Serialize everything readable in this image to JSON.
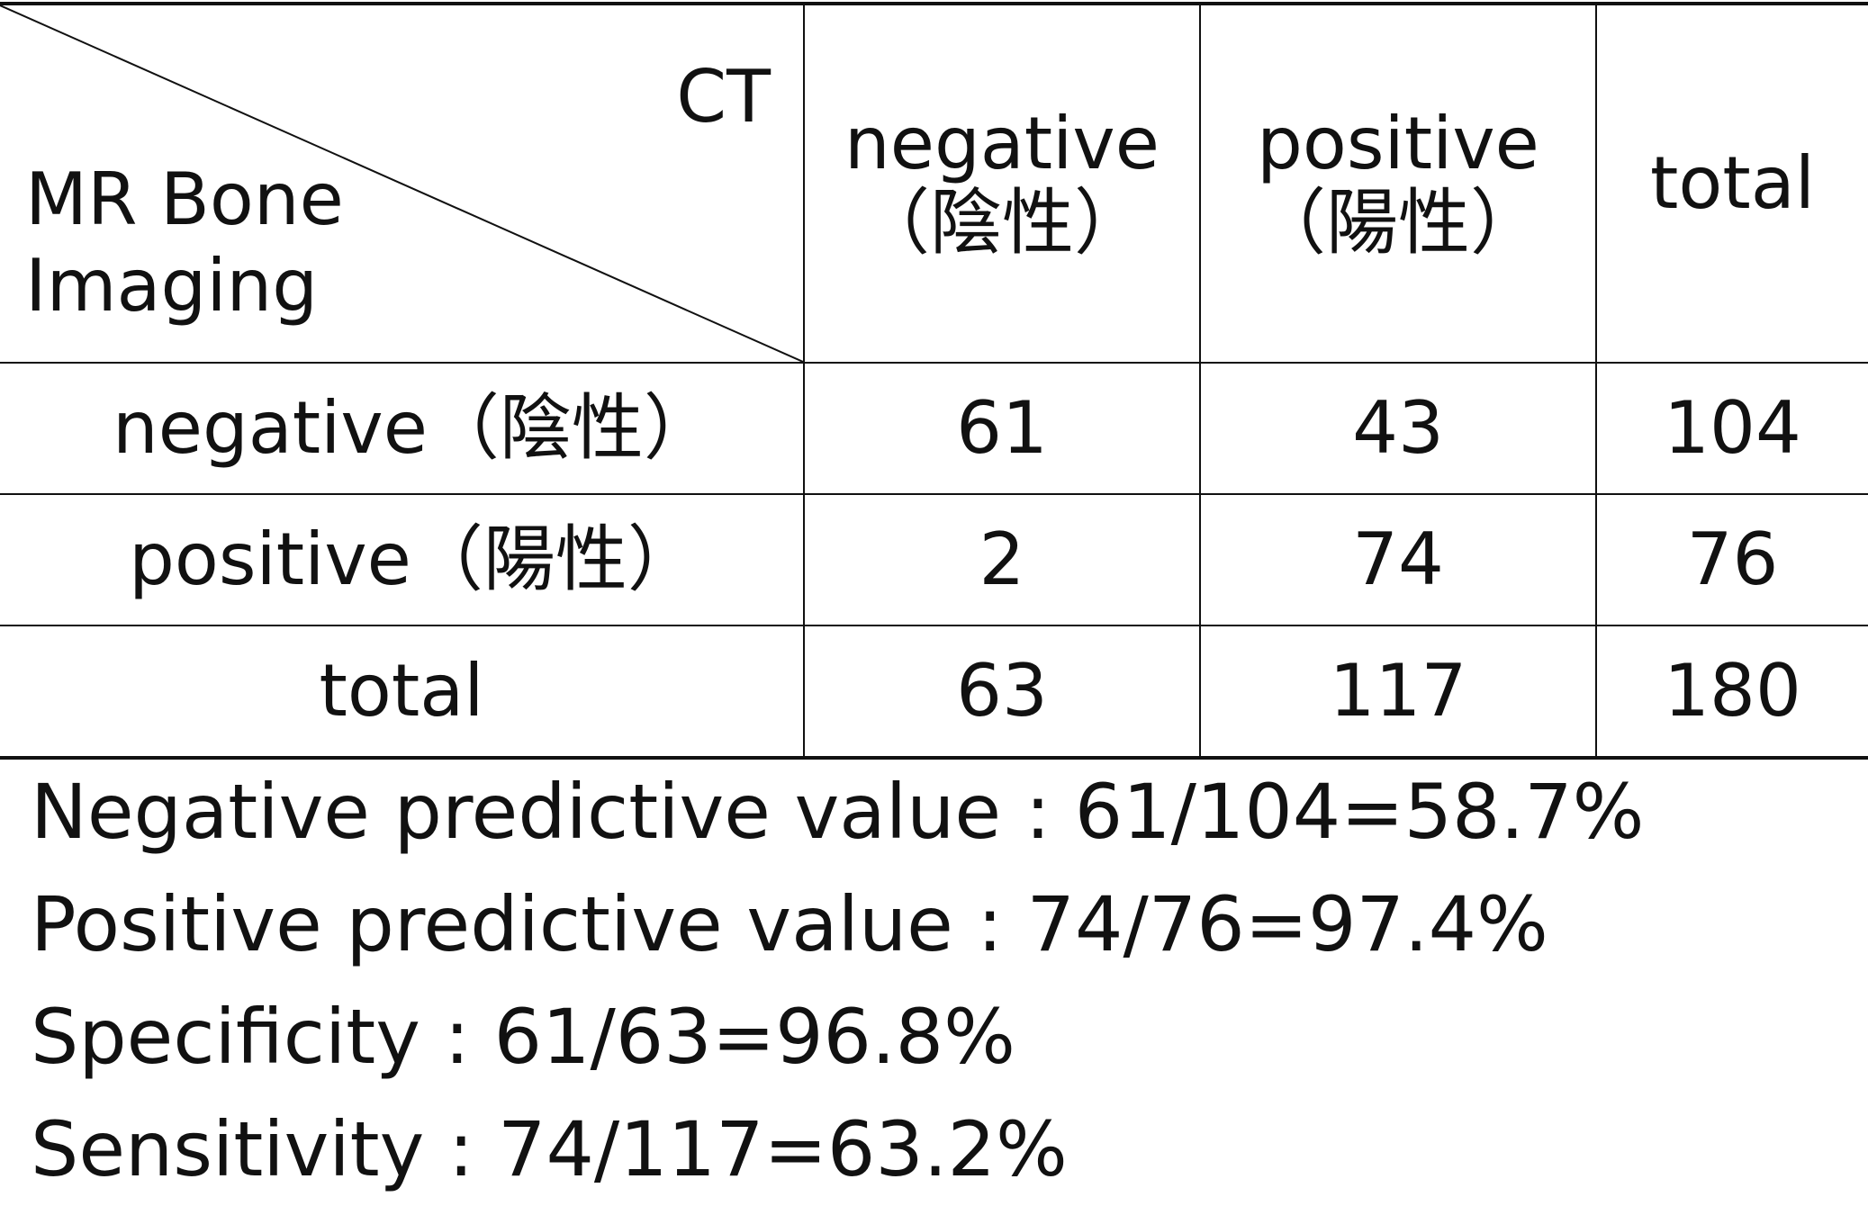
{
  "table": {
    "corner": {
      "column_header": "CT",
      "row_header_line1": "MR Bone",
      "row_header_line2": "Imaging"
    },
    "columns": [
      {
        "line1": "negative",
        "line2": "（陰性）"
      },
      {
        "line1": "positive",
        "line2": "（陽性）"
      },
      {
        "line1": "total",
        "line2": ""
      }
    ],
    "rows": [
      {
        "label": "negative（陰性）",
        "cells": [
          "61",
          "43",
          "104"
        ]
      },
      {
        "label": "positive（陽性）",
        "cells": [
          "2",
          "74",
          "76"
        ]
      },
      {
        "label": "total",
        "cells": [
          "63",
          "117",
          "180"
        ]
      }
    ]
  },
  "metrics": [
    "Negative predictive value : 61/104=58.7%",
    "Positive predictive value : 74/76=97.4%",
    "Specificity : 61/63=96.8%",
    "Sensitivity : 74/117=63.2%"
  ]
}
